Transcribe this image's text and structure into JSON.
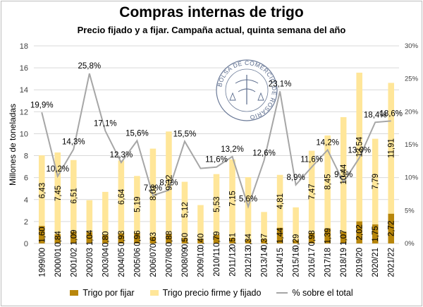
{
  "title": "Compras internas de trigo",
  "subtitle": "Precio fijado y a fijar. Campaña actual, quinta semana del año",
  "logo_text": "BOLSA DE COMERCIO DE ROSARIO",
  "colors": {
    "fijar": "#b8860b",
    "firme": "#ffe699",
    "pct_line": "#a6a6a6",
    "grid": "#d9d9d9"
  },
  "chart_data": {
    "type": "bar",
    "stacked": true,
    "categories": [
      "1999/00",
      "2000/01",
      "2001/02",
      "2002/03",
      "2003/04",
      "2004/05",
      "2005/06",
      "2006/07",
      "2007/08",
      "2008/09",
      "2009/10",
      "2010/11",
      "2011/12",
      "2012/13",
      "2013/14",
      "2014/15",
      "2015/16",
      "2016/17",
      "2017/18",
      "2018/19",
      "2019/20",
      "2020/21",
      "2021/22"
    ],
    "series": [
      {
        "name": "Trigo por fijar",
        "values": [
          1.6,
          0.84,
          1.09,
          1.04,
          0.8,
          0.93,
          0.96,
          0.63,
          0.88,
          0.5,
          0.4,
          0.79,
          0.51,
          0.34,
          0.37,
          1.44,
          0.29,
          0.98,
          1.39,
          1.07,
          2.02,
          1.75,
          2.72
        ],
        "labels": [
          "1,60",
          "0,84",
          "1,09",
          "1,04",
          "0,80",
          "0,93",
          "0,96",
          "0,63",
          "0,88",
          "0,50",
          "0,40",
          "0,79",
          "0,51",
          "0,34",
          "0,37",
          "1,44",
          "0,29",
          "0,98",
          "1,39",
          "1,07",
          "2,02",
          "1,75",
          "2,72"
        ]
      },
      {
        "name": "Trigo precio firme y fijado",
        "values": [
          6.43,
          7.45,
          6.51,
          2.9,
          3.9,
          6.64,
          5.19,
          8.01,
          9.32,
          5.12,
          3.1,
          5.53,
          7.15,
          5.7,
          2.5,
          4.81,
          3.0,
          7.47,
          8.45,
          10.44,
          13.54,
          7.79,
          11.91
        ],
        "labels": [
          "6,43",
          "7,45",
          "6,51",
          "",
          "",
          "6,64",
          "5,19",
          "8,01",
          "9,32",
          "5,12",
          "",
          "5,53",
          "7,15",
          "",
          "",
          "4,81",
          "",
          "7,47",
          "8,45",
          "10,44",
          "13,54",
          "7,79",
          "11,91"
        ]
      },
      {
        "name": "% sobre el total",
        "axis": "secondary",
        "values": [
          19.9,
          10.2,
          14.3,
          25.8,
          17.1,
          12.3,
          15.6,
          7.3,
          8.1,
          15.5,
          11.4,
          11.6,
          13.2,
          5.6,
          12.6,
          23.1,
          8.9,
          11.6,
          14.2,
          9.3,
          13.0,
          18.4,
          18.6
        ],
        "labels": [
          "19,9%",
          "10,2%",
          "14,3%",
          "25,8%",
          "17,1%",
          "12,3%",
          "15,6%",
          "7,3%",
          "8,1%",
          "15,5%",
          "",
          "11,6%",
          "13,2%",
          "5,6%",
          "12,6%",
          "23,1%",
          "8,9%",
          "11,6%",
          "14,2%",
          "9,3%",
          "13,0%",
          "18,4%",
          "18,6%"
        ]
      }
    ],
    "ylabel": "Millones de toneladas",
    "ylim": [
      0,
      18
    ],
    "yticks": [
      "0",
      "2",
      "4",
      "6",
      "8",
      "10",
      "12",
      "14",
      "16",
      "18"
    ],
    "y2lim": [
      0,
      30
    ],
    "y2ticks": [
      "0%",
      "5%",
      "10%",
      "15%",
      "20%",
      "25%",
      "30%"
    ],
    "grid": true,
    "legend": "bottom"
  }
}
